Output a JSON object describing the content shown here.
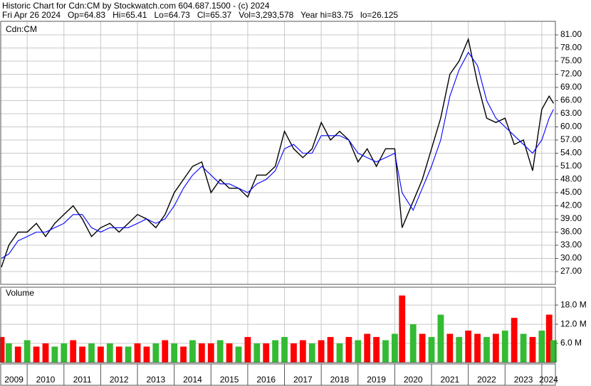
{
  "header": {
    "title": "Historic Chart for Cdn:CM by Stockwatch.com 604.687.1500 - (c) 2024",
    "quote": "Fri Apr 26 2024   Op=64.83   Hi=65.41   Lo=64.73   Cl=65.37   Vol=3,293,578   Year hi=83.75   lo=26.125"
  },
  "chart_data": [
    {
      "type": "line",
      "title": "Cdn:CM",
      "x": [
        2009.3,
        2009.5,
        2009.75,
        2010,
        2010.25,
        2010.5,
        2010.75,
        2011,
        2011.25,
        2011.5,
        2011.75,
        2012,
        2012.25,
        2012.5,
        2012.75,
        2013,
        2013.25,
        2013.5,
        2013.75,
        2014,
        2014.25,
        2014.5,
        2014.75,
        2015,
        2015.25,
        2015.5,
        2015.75,
        2016,
        2016.25,
        2016.5,
        2016.75,
        2017,
        2017.25,
        2017.5,
        2017.75,
        2018,
        2018.25,
        2018.5,
        2018.75,
        2019,
        2019.25,
        2019.5,
        2019.75,
        2020,
        2020.2,
        2020.5,
        2020.75,
        2021,
        2021.25,
        2021.5,
        2021.75,
        2022,
        2022.25,
        2022.5,
        2022.75,
        2023,
        2023.25,
        2023.5,
        2023.75,
        2024,
        2024.2,
        2024.32
      ],
      "series": [
        {
          "color": "#000000",
          "values": [
            28,
            33,
            36,
            36,
            38,
            35,
            38,
            40,
            42,
            39,
            35,
            37,
            38,
            36,
            38,
            40,
            39,
            37,
            40,
            45,
            48,
            51,
            52,
            45,
            48,
            46,
            46,
            44,
            49,
            49,
            51,
            59,
            55,
            53,
            55,
            61,
            57,
            59,
            57,
            52,
            55,
            51,
            55,
            55,
            37,
            43,
            48,
            55,
            62,
            72,
            75,
            80,
            70,
            62,
            61,
            62,
            56,
            57,
            50,
            64,
            67,
            65.37
          ]
        },
        {
          "color": "#0000ff",
          "values": [
            30,
            31,
            34,
            35,
            36,
            36,
            37,
            38,
            40,
            40,
            37,
            36,
            37,
            37,
            37,
            38,
            39,
            38,
            39,
            42,
            46,
            49,
            51,
            49,
            47,
            47,
            46,
            45,
            47,
            48,
            50,
            55,
            56,
            54,
            54,
            58,
            58,
            58,
            57,
            54,
            53,
            52,
            53,
            54,
            45,
            41,
            46,
            51,
            57,
            67,
            73,
            77,
            74,
            66,
            62,
            60,
            58,
            56,
            54,
            57,
            62,
            64
          ]
        }
      ],
      "xlim": [
        2009.28,
        2024.37
      ],
      "xticks": [
        2009,
        2010,
        2011,
        2012,
        2013,
        2014,
        2015,
        2016,
        2017,
        2018,
        2019,
        2020,
        2021,
        2022,
        2023,
        2024
      ],
      "ylim": [
        24.08,
        84.08
      ],
      "yticks": [
        {
          "value": 27,
          "label": "27.00"
        },
        {
          "value": 30,
          "label": "30.00"
        },
        {
          "value": 33,
          "label": "33.00"
        },
        {
          "value": 36,
          "label": "36.00"
        },
        {
          "value": 39,
          "label": "39.00"
        },
        {
          "value": 42,
          "label": "42.00"
        },
        {
          "value": 45,
          "label": "45.00"
        },
        {
          "value": 48,
          "label": "48.00"
        },
        {
          "value": 51,
          "label": "51.00"
        },
        {
          "value": 54,
          "label": "54.00"
        },
        {
          "value": 57,
          "label": "57.00"
        },
        {
          "value": 60,
          "label": "60.00"
        },
        {
          "value": 63,
          "label": "63.00"
        },
        {
          "value": 66,
          "label": "66.00"
        },
        {
          "value": 69,
          "label": "69.00"
        },
        {
          "value": 72,
          "label": "72.00"
        },
        {
          "value": 75,
          "label": "75.00"
        },
        {
          "value": 78,
          "label": "78.00"
        },
        {
          "value": 81,
          "label": "81.00"
        }
      ],
      "grid": true
    },
    {
      "type": "bar",
      "title": "Volume",
      "x": [
        2009.3,
        2009.5,
        2009.75,
        2010,
        2010.25,
        2010.5,
        2010.75,
        2011,
        2011.25,
        2011.5,
        2011.75,
        2012,
        2012.25,
        2012.5,
        2012.75,
        2013,
        2013.25,
        2013.5,
        2013.75,
        2014,
        2014.25,
        2014.5,
        2014.75,
        2015,
        2015.25,
        2015.5,
        2015.75,
        2016,
        2016.25,
        2016.5,
        2016.75,
        2017,
        2017.25,
        2017.5,
        2017.75,
        2018,
        2018.25,
        2018.5,
        2018.75,
        2019,
        2019.25,
        2019.5,
        2019.75,
        2020,
        2020.2,
        2020.5,
        2020.75,
        2021,
        2021.25,
        2021.5,
        2021.75,
        2022,
        2022.25,
        2022.5,
        2022.75,
        2023,
        2023.25,
        2023.5,
        2023.75,
        2024,
        2024.2,
        2024.32
      ],
      "values": [
        8,
        6,
        5,
        7,
        5,
        6,
        5,
        6,
        7,
        5,
        6,
        5,
        6,
        5,
        5,
        6,
        5,
        6,
        7,
        6,
        5,
        7,
        6,
        6,
        7,
        6,
        5,
        8,
        6,
        6,
        7,
        8,
        6,
        7,
        6,
        7,
        8,
        6,
        8,
        7,
        9,
        8,
        7,
        9,
        21,
        12,
        9,
        8,
        15,
        9,
        8,
        10,
        9,
        8,
        9,
        10,
        14,
        9,
        8,
        10,
        15,
        7
      ],
      "colors": [
        "#ff0000",
        "#33bb33",
        "#ff0000",
        "#33bb33",
        "#ff0000",
        "#ff0000",
        "#33bb33",
        "#33bb33",
        "#ff0000",
        "#ff0000",
        "#33bb33",
        "#ff0000",
        "#33bb33",
        "#ff0000",
        "#33bb33",
        "#ff0000",
        "#ff0000",
        "#33bb33",
        "#ff0000",
        "#33bb33",
        "#ff0000",
        "#33bb33",
        "#ff0000",
        "#ff0000",
        "#33bb33",
        "#ff0000",
        "#33bb33",
        "#ff0000",
        "#33bb33",
        "#ff0000",
        "#33bb33",
        "#33bb33",
        "#ff0000",
        "#ff0000",
        "#33bb33",
        "#ff0000",
        "#ff0000",
        "#33bb33",
        "#ff0000",
        "#33bb33",
        "#ff0000",
        "#ff0000",
        "#33bb33",
        "#33bb33",
        "#ff0000",
        "#33bb33",
        "#ff0000",
        "#33bb33",
        "#33bb33",
        "#ff0000",
        "#33bb33",
        "#ff0000",
        "#ff0000",
        "#33bb33",
        "#ff0000",
        "#33bb33",
        "#ff0000",
        "#33bb33",
        "#ff0000",
        "#33bb33",
        "#ff0000",
        "#33bb33"
      ],
      "xlim": [
        2009.28,
        2024.37
      ],
      "xticks": [
        2009,
        2010,
        2011,
        2012,
        2013,
        2014,
        2015,
        2016,
        2017,
        2018,
        2019,
        2020,
        2021,
        2022,
        2023,
        2024
      ],
      "ylim": [
        0,
        23.6
      ],
      "yticks": [
        {
          "value": 6,
          "label": "6.0 M"
        },
        {
          "value": 12,
          "label": "12.0 M"
        },
        {
          "value": 18,
          "label": "18.0 M"
        }
      ],
      "grid": true
    }
  ]
}
